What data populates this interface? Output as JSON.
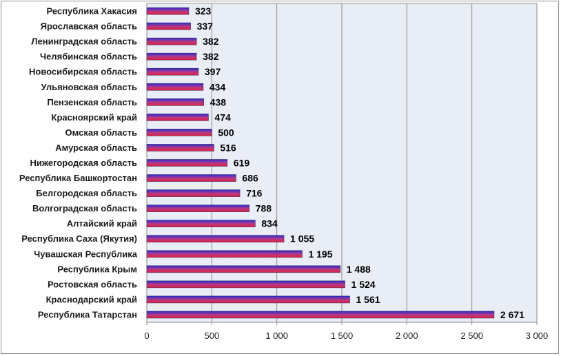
{
  "chart_data": {
    "type": "bar",
    "orientation": "horizontal",
    "categories": [
      "Республика Хакасия",
      "Ярославская область",
      "Ленинградская область",
      "Челябинская область",
      "Новосибирская область",
      "Ульяновская область",
      "Пензенская область",
      "Красноярский край",
      "Омская область",
      "Амурская область",
      "Нижегородская область",
      "Республика Башкортостан",
      "Белгородская область",
      "Волгоградская область",
      "Алтайский край",
      "Республика Саха (Якутия)",
      "Чувашская Республика",
      "Республика Крым",
      "Ростовская область",
      "Краснодарский край",
      "Республика Татарстан"
    ],
    "values": [
      323,
      337,
      382,
      382,
      397,
      434,
      438,
      474,
      500,
      516,
      619,
      686,
      716,
      788,
      834,
      1055,
      1195,
      1488,
      1524,
      1561,
      2671
    ],
    "value_labels": [
      "323",
      "337",
      "382",
      "382",
      "397",
      "434",
      "438",
      "474",
      "500",
      "516",
      "619",
      "686",
      "716",
      "788",
      "834",
      "1 055",
      "1 195",
      "1 488",
      "1 524",
      "1 561",
      "2 671"
    ],
    "xlim": [
      0,
      3000
    ],
    "x_ticks": [
      0,
      500,
      1000,
      1500,
      2000,
      2500,
      3000
    ],
    "x_tick_labels": [
      "0",
      "500",
      "1 000",
      "1 500",
      "2 000",
      "2 500",
      "3 000"
    ],
    "grid": "vertical",
    "legend": "none",
    "colors": {
      "plot_background": "#e9edf6",
      "grid": "#8a8a8a",
      "bar_top": "#2b2bd0",
      "bar_mid": "#b03a8a",
      "bar_bottom": "#e8203a"
    }
  }
}
